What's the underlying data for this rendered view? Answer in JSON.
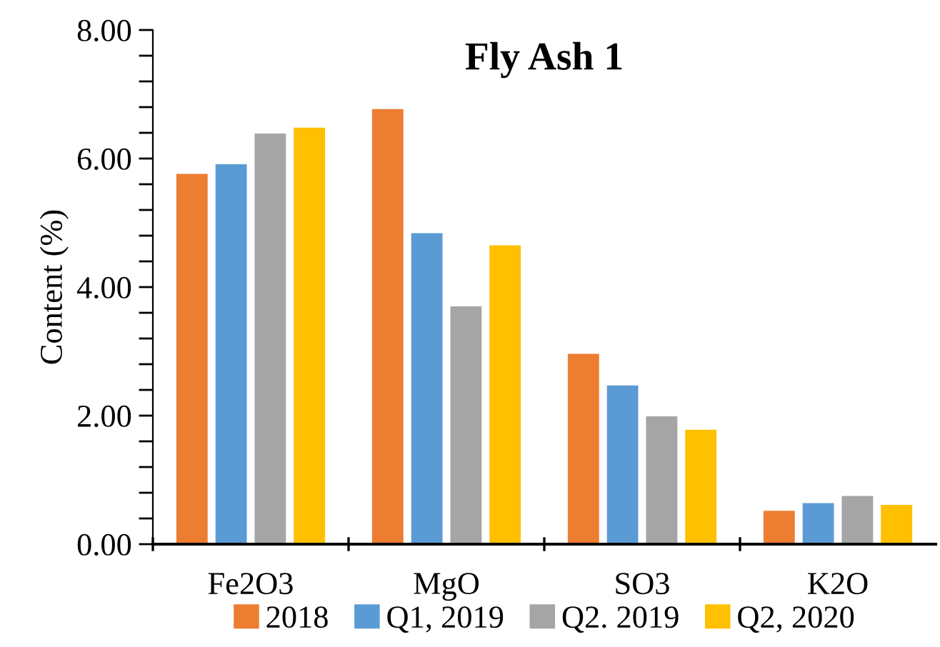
{
  "chart_data": {
    "type": "bar",
    "title": "Fly Ash 1",
    "ylabel": "Content (%)",
    "categories": [
      "Fe2O3",
      "MgO",
      "SO3",
      "K2O"
    ],
    "series": [
      {
        "name": "2018",
        "color": "#ed7d31",
        "values": [
          5.76,
          6.77,
          2.96,
          0.52
        ]
      },
      {
        "name": "Q1, 2019",
        "color": "#5b9bd5",
        "values": [
          5.91,
          4.84,
          2.47,
          0.64
        ]
      },
      {
        "name": "Q2. 2019",
        "color": "#a5a5a5",
        "values": [
          6.39,
          3.7,
          1.99,
          0.75
        ]
      },
      {
        "name": "Q2, 2020",
        "color": "#ffc000",
        "values": [
          6.48,
          4.65,
          1.78,
          0.61
        ]
      }
    ],
    "ylim": [
      0,
      8
    ],
    "yticks": [
      {
        "value": 0,
        "label": "0.00"
      },
      {
        "value": 0.4,
        "label": null
      },
      {
        "value": 0.8,
        "label": null
      },
      {
        "value": 1.2,
        "label": null
      },
      {
        "value": 1.6,
        "label": null
      },
      {
        "value": 2,
        "label": "2.00"
      },
      {
        "value": 2.4,
        "label": null
      },
      {
        "value": 2.8,
        "label": null
      },
      {
        "value": 3.2,
        "label": null
      },
      {
        "value": 3.6,
        "label": null
      },
      {
        "value": 4,
        "label": "4.00"
      },
      {
        "value": 4.4,
        "label": null
      },
      {
        "value": 4.8,
        "label": null
      },
      {
        "value": 5.2,
        "label": null
      },
      {
        "value": 5.6,
        "label": null
      },
      {
        "value": 6,
        "label": "6.00"
      },
      {
        "value": 6.4,
        "label": null
      },
      {
        "value": 6.8,
        "label": null
      },
      {
        "value": 7.2,
        "label": null
      },
      {
        "value": 7.6,
        "label": null
      },
      {
        "value": 8,
        "label": "8.00"
      }
    ],
    "grid": false,
    "legend": "bottom"
  }
}
